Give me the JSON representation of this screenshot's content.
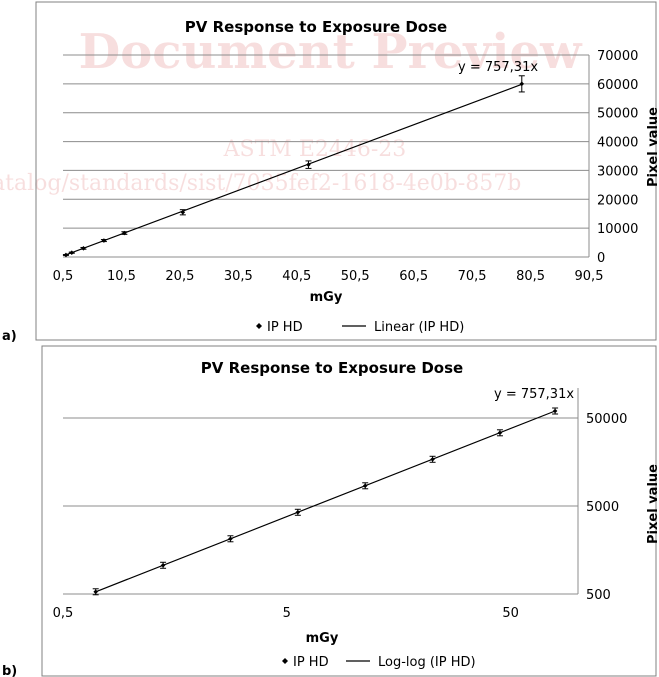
{
  "watermark": {
    "line1": "Document Preview",
    "line2": "ASTM E2446-23",
    "line3": "atalog/standards/sist/7035fef2-1618-4e0b-857b",
    "color": "#d23a3a"
  },
  "chart_data": [
    {
      "panel_label": "a)",
      "type": "scatter",
      "title": "PV Response to Exposure Dose",
      "xlabel": "mGy",
      "ylabel": "Pixel value",
      "xlim": [
        0.5,
        90.5
      ],
      "ylim": [
        0,
        70000
      ],
      "x_ticks": [
        "0,5",
        "10,5",
        "20,5",
        "30,5",
        "40,5",
        "50,5",
        "60,5",
        "70,5",
        "80,5",
        "90,5"
      ],
      "y_ticks": [
        "0",
        "10000",
        "20000",
        "30000",
        "40000",
        "50000",
        "60000",
        "70000"
      ],
      "grid": true,
      "legend_position": "bottom",
      "equation": "y = 757,31x",
      "trendline": {
        "name": "Linear (IP HD)",
        "slope": 757.31
      },
      "series": [
        {
          "name": "IP HD",
          "x": [
            1.0,
            2.0,
            4.0,
            7.5,
            11.0,
            21.0,
            42.5,
            79.0
          ],
          "y": [
            700,
            1500,
            3000,
            5700,
            8300,
            15500,
            32000,
            60000
          ],
          "error": [
            150,
            200,
            300,
            350,
            450,
            900,
            1300,
            2800
          ]
        }
      ],
      "legend": {
        "series_label": "IP HD",
        "trend_label": "Linear (IP HD)"
      }
    },
    {
      "panel_label": "b)",
      "type": "scatter",
      "title": "PV Response to Exposure Dose",
      "xlabel": "mGy",
      "ylabel": "Pixel value",
      "x_scale": "log",
      "y_scale": "log",
      "xlim": [
        0.5,
        100
      ],
      "ylim": [
        500,
        80000
      ],
      "x_ticks": [
        {
          "value": 0.5,
          "label": "0,5"
        },
        {
          "value": 5,
          "label": "5"
        },
        {
          "value": 50,
          "label": "50"
        }
      ],
      "y_ticks": [
        {
          "value": 500,
          "label": "500"
        },
        {
          "value": 5000,
          "label": "5000"
        },
        {
          "value": 50000,
          "label": "50000"
        }
      ],
      "grid": true,
      "legend_position": "bottom",
      "equation": "y = 757,31x",
      "trendline": {
        "name": "Log-log (IP HD)",
        "slope": 757.31
      },
      "series": [
        {
          "name": "IP HD",
          "x": [
            0.7,
            1.4,
            2.8,
            5.6,
            11.2,
            22.4,
            44.8,
            79.0
          ],
          "y": [
            530,
            1060,
            2120,
            4240,
            8480,
            16960,
            33920,
            60000
          ]
        }
      ],
      "legend": {
        "series_label": "IP HD",
        "trend_label": "Log-log (IP HD)"
      }
    }
  ]
}
